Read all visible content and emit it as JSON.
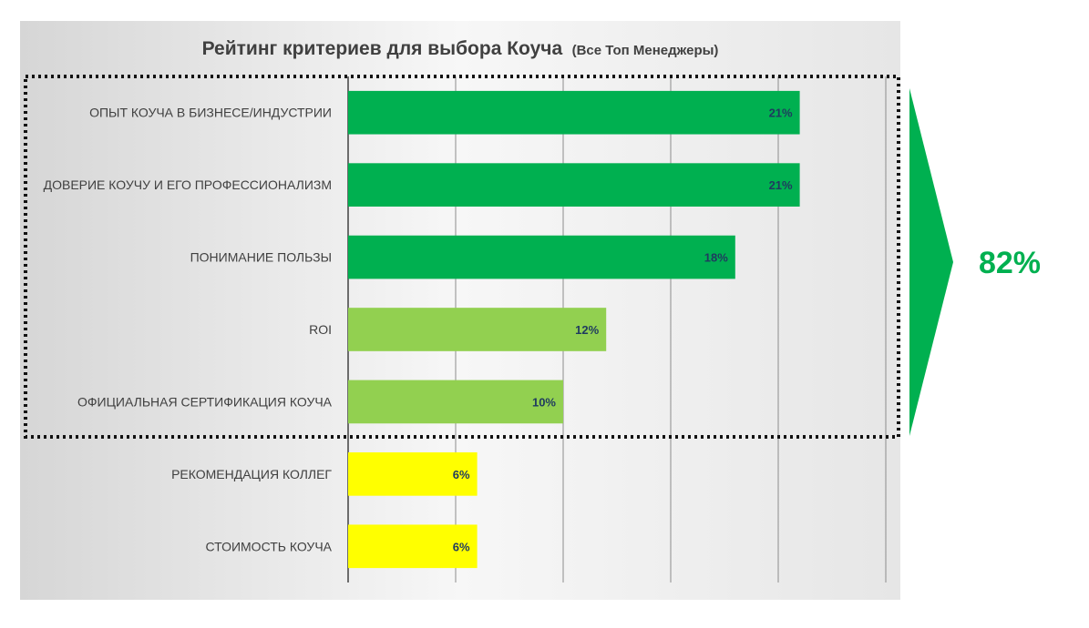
{
  "chart_data": {
    "type": "bar",
    "orientation": "horizontal",
    "title": "Рейтинг критериев для выбора Коуча",
    "subtitle": "(Все Топ Менеджеры)",
    "categories": [
      "ОПЫТ КОУЧА В БИЗНЕСЕ/ИНДУСТРИИ",
      "ДОВЕРИЕ КОУЧУ И ЕГО ПРОФЕССИОНАЛИЗМ",
      "ПОНИМАНИЕ ПОЛЬЗЫ",
      "ROI",
      "ОФИЦИАЛЬНАЯ СЕРТИФИКАЦИЯ КОУЧА",
      "РЕКОМЕНДАЦИЯ КОЛЛЕГ",
      "СТОИМОСТЬ КОУЧА"
    ],
    "values": [
      21,
      21,
      18,
      12,
      10,
      6,
      6
    ],
    "value_labels": [
      "21%",
      "21%",
      "18%",
      "12%",
      "10%",
      "6%",
      "6%"
    ],
    "bar_colors": [
      "#00b050",
      "#00b050",
      "#00b050",
      "#92d050",
      "#92d050",
      "#ffff00",
      "#ffff00"
    ],
    "xlim": [
      0,
      25
    ],
    "grid": true,
    "grouped_total": {
      "label": "82%",
      "color": "#00b050",
      "covers_categories": 5
    }
  }
}
